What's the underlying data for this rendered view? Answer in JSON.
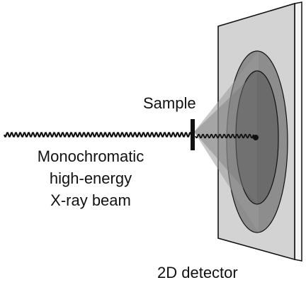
{
  "labels": {
    "sample": "Sample",
    "beam_line1": "Monochromatic",
    "beam_line2": "high-energy",
    "beam_line3": "X-ray beam",
    "detector": "2D detector"
  },
  "colors": {
    "detector_panel": "#d3d3d3",
    "detector_edge": "#f4f4f4",
    "outer_ring": "#8d8d8d",
    "inner_ring": "#6b6b6b",
    "cone": "#9a9a9a",
    "beam": "#111111",
    "outline": "#111111"
  }
}
